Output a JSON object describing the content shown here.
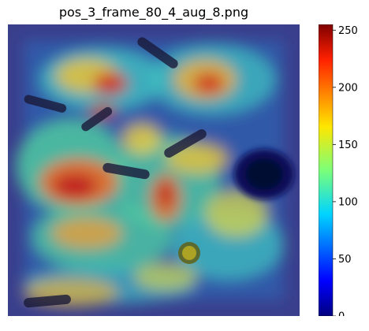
{
  "figure": {
    "title": "pos_3_frame_80_4_aug_8.png",
    "description_overlay": "heatmap",
    "colormap": "jet",
    "colorbar": {
      "min": 0,
      "max": 255,
      "ticks": [
        0,
        50,
        100,
        150,
        200,
        250
      ],
      "tick_labels": [
        "0",
        "50",
        "100",
        "150",
        "200",
        "250"
      ]
    }
  }
}
